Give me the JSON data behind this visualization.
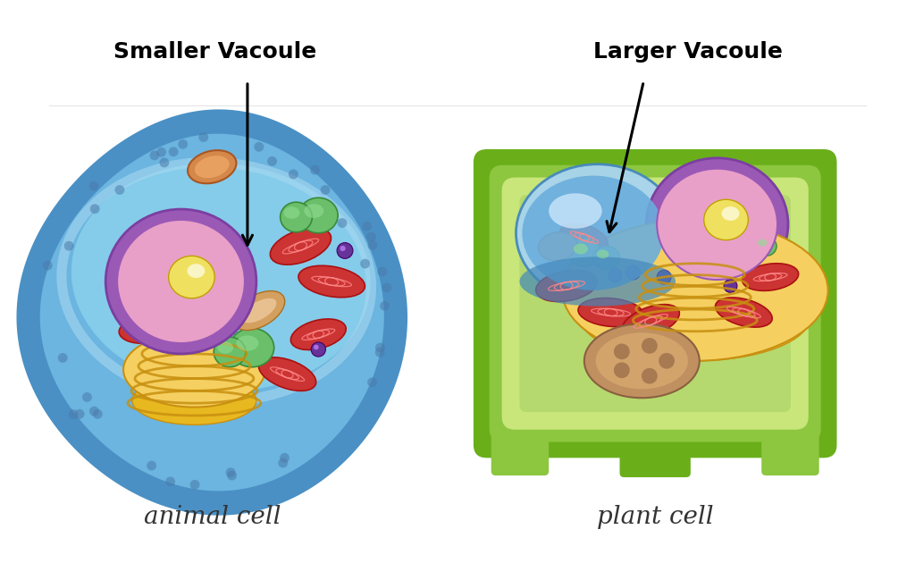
{
  "background_color": "#ffffff",
  "fig_width": 10.24,
  "fig_height": 6.3,
  "label_smaller": "Smaller Vacoule",
  "label_larger": "Larger Vacoule",
  "label_animal": "animal cell",
  "label_plant": "plant cell",
  "colors": {
    "animal_outer_dark": "#4A90C4",
    "animal_outer_mid": "#6BB5E0",
    "animal_inner_light": "#A8D8F0",
    "animal_cytoplasm": "#87CEEB",
    "plant_wall_dark": "#6AAF1A",
    "plant_wall_mid": "#8DC63F",
    "plant_inner": "#B5D96E",
    "plant_cytoplasm": "#C8E67A",
    "nucleus_outer_purple": "#7B3FA0",
    "nucleus_purple": "#9B59B6",
    "nucleus_pink": "#E8A0C8",
    "nucleolus_yellow": "#F0E060",
    "mitochondria_red": "#CC3333",
    "mito_dark": "#AA1111",
    "mito_inner": "#FF8888",
    "golgi_yellow": "#E8B820",
    "golgi_dark": "#C89010",
    "golgi_light": "#F5D060",
    "vacuole_blue_light": "#A8D4F0",
    "vacuole_blue_mid": "#6AAEDD",
    "vacuole_blue_dark": "#4488BB",
    "chloroplast_green": "#2ECC71",
    "chloroplast_dark": "#1A8A40",
    "green_vesicle": "#6BBF6B",
    "green_vesicle_dark": "#3A8A3A",
    "purple_vesicle": "#663399",
    "er_tan": "#D4A060",
    "er_light": "#E8C090",
    "amyloplast": "#C09060",
    "amyloplast_dark": "#8A6040",
    "dot_blue": "#4A7AAA",
    "arrow_color": "#000000",
    "text_color": "#000000"
  }
}
